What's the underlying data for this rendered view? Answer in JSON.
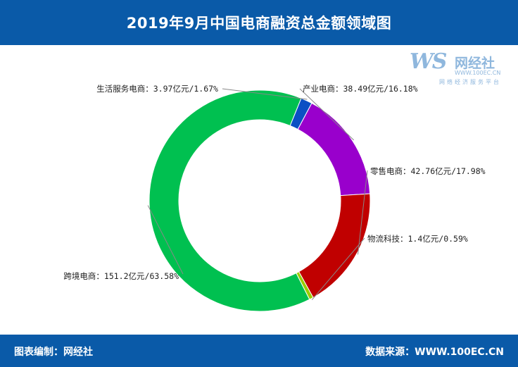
{
  "header": {
    "title": "2019年9月中国电商融资总金额领域图"
  },
  "logo": {
    "brand": "WS",
    "name": "网经社",
    "url": "WWW.100EC.CN",
    "tagline": "网络经济服务平台"
  },
  "footer": {
    "editor": "图表编制：网经社",
    "source": "数据来源：WWW.100EC.CN"
  },
  "colors": {
    "header_bg": "#0a5aa8",
    "industry": "#9900cc",
    "retail": "#c00000",
    "logistics": "#99cc00",
    "cross_border": "#00c050",
    "life_service": "#0b4fc4"
  },
  "chart_data": {
    "type": "pie",
    "style": "donut",
    "title": "2019年9月中国电商融资总金额领域图",
    "unit": "亿元",
    "slices": [
      {
        "name": "产业电商",
        "value": 38.49,
        "percent": 16.18,
        "color": "#9900cc",
        "label": "产业电商：38.49亿元/16.18%"
      },
      {
        "name": "零售电商",
        "value": 42.76,
        "percent": 17.98,
        "color": "#c00000",
        "label": "零售电商：42.76亿元/17.98%"
      },
      {
        "name": "物流科技",
        "value": 1.4,
        "percent": 0.59,
        "color": "#99cc00",
        "label": "物流科技：1.4亿元/0.59%"
      },
      {
        "name": "跨境电商",
        "value": 151.2,
        "percent": 63.58,
        "color": "#00c050",
        "label": "跨境电商：151.2亿元/63.58%"
      },
      {
        "name": "生活服务电商",
        "value": 3.97,
        "percent": 1.67,
        "color": "#0b4fc4",
        "label": "生活服务电商：3.97亿元/1.67%"
      }
    ]
  }
}
